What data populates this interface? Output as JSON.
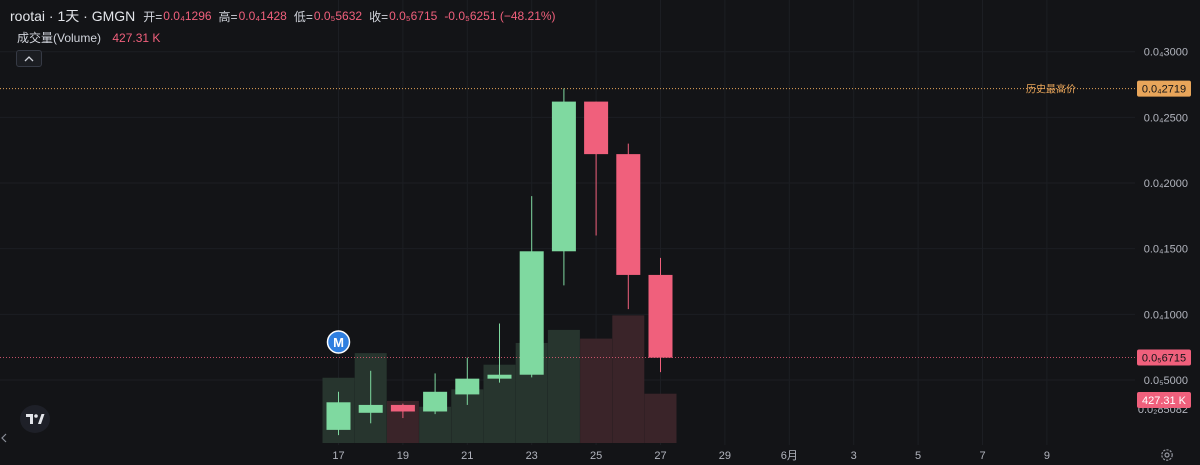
{
  "header": {
    "symbol": "rootai · 1天 · GMGN",
    "open_label": "开=",
    "open_value": "0.0₄1296",
    "high_label": "高=",
    "high_value": "0.0₄1428",
    "low_label": "低=",
    "low_value": "0.0₅5632",
    "close_label": "收=",
    "close_value": "0.0₅6715",
    "change": "-0.0₅6251 (−48.21%)"
  },
  "volume_legend": {
    "label": "成交量(Volume)",
    "value": "427.31 K"
  },
  "icons": {
    "collapse": "chevron-up-icon",
    "logo": "tradingview-logo",
    "scroll_left": "chevron-left-icon",
    "settings": "gear-icon"
  },
  "chart_data": {
    "type": "candlestick",
    "x_tick_labels": [
      "17",
      "19",
      "21",
      "23",
      "25",
      "27",
      "29",
      "6月",
      "3",
      "5",
      "7",
      "9"
    ],
    "y_tick_labels": [
      "0.0₄3000",
      "0.0₄2500",
      "0.0₄2000",
      "0.0₄1500",
      "0.0₄1000",
      "0.0₅5000"
    ],
    "y_ticks": [
      3e-05,
      2.5e-05,
      2e-05,
      1.5e-05,
      1e-05,
      5e-06
    ],
    "ylim": [
      2e-07,
      3.15e-05
    ],
    "candles": [
      {
        "date": "17",
        "open": 1.2e-06,
        "high": 4.1e-06,
        "low": 8e-07,
        "close": 3.3e-06
      },
      {
        "date": "18",
        "open": 2.5e-06,
        "high": 5.7e-06,
        "low": 1.7e-06,
        "close": 3.1e-06
      },
      {
        "date": "19",
        "open": 3.1e-06,
        "high": 3.2e-06,
        "low": 2.1e-06,
        "close": 2.6e-06
      },
      {
        "date": "20",
        "open": 2.6e-06,
        "high": 5.5e-06,
        "low": 2.4e-06,
        "close": 4.1e-06
      },
      {
        "date": "21",
        "open": 3.9e-06,
        "high": 6.7e-06,
        "low": 3.1e-06,
        "close": 5.1e-06
      },
      {
        "date": "22",
        "open": 5.1e-06,
        "high": 9.3e-06,
        "low": 4.8e-06,
        "close": 5.4e-06
      },
      {
        "date": "23",
        "open": 5.4e-06,
        "high": 1.9e-05,
        "low": 5.2e-06,
        "close": 1.48e-05
      },
      {
        "date": "24",
        "open": 1.48e-05,
        "high": 2.72e-05,
        "low": 1.22e-05,
        "close": 2.62e-05
      },
      {
        "date": "25",
        "open": 2.62e-05,
        "high": 2.62e-05,
        "low": 1.6e-05,
        "close": 2.22e-05
      },
      {
        "date": "26",
        "open": 2.22e-05,
        "high": 2.3e-05,
        "low": 1.04e-05,
        "close": 1.3e-05
      },
      {
        "date": "27",
        "open": 1.3e-05,
        "high": 1.43e-05,
        "low": 5.6e-06,
        "close": 6.7e-06
      }
    ],
    "volume": [
      0.45,
      0.62,
      0.29,
      0.25,
      0.37,
      0.54,
      0.69,
      0.78,
      0.72,
      0.88,
      0.34
    ],
    "volume_last_label": "427.31 K",
    "volume_bottom_label": "0.0₂85082",
    "ath_line": {
      "value": 2.719e-05,
      "label": "历史最高价",
      "price_label": "0.0₄2719"
    },
    "last_price_line": {
      "value": 6.715e-06,
      "price_label": "0.0₅6715"
    },
    "marker": {
      "date": "17",
      "label": "M"
    },
    "colors": {
      "up": "#7fd9a0",
      "down": "#f0607c",
      "up_volume": "#27352e",
      "down_volume": "#3a2429",
      "ath": "#e8a55a",
      "grid": "#1c1e23",
      "background": "#131417"
    }
  }
}
